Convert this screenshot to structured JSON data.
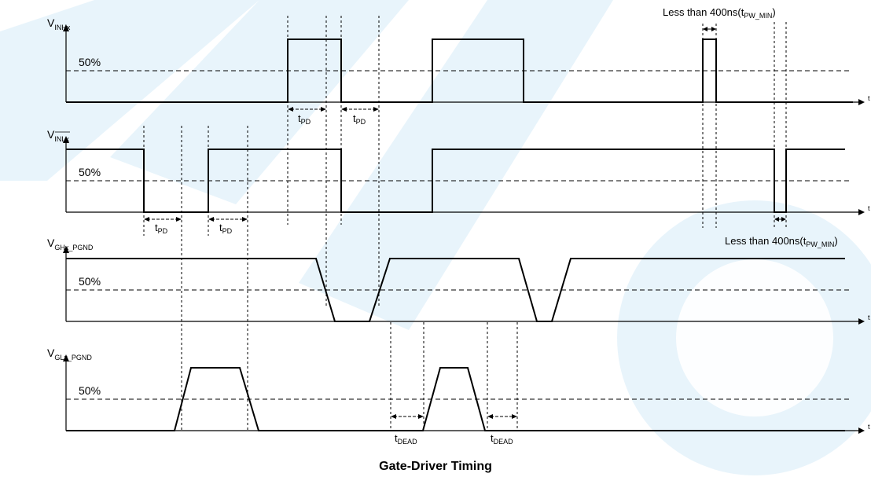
{
  "figure": {
    "caption": "Gate-Driver Timing"
  },
  "signals": [
    {
      "id": "inh",
      "label_main": "V",
      "label_sub": "INHx",
      "overline": false
    },
    {
      "id": "inl",
      "label_main": "V",
      "label_sub": "INLx",
      "overline": true
    },
    {
      "id": "gh",
      "label_main": "V",
      "label_sub": "GHx_PGND",
      "overline": false
    },
    {
      "id": "gl",
      "label_main": "V",
      "label_sub": "GLx_PGND",
      "overline": false
    }
  ],
  "threshold_label": "50%",
  "time_axis_label": "t",
  "tpd": {
    "main": "t",
    "sub": "PD"
  },
  "tdead": {
    "main": "t",
    "sub": "DEAD"
  },
  "pulse_note": {
    "prefix": "Less than 400ns(t",
    "sub": "PW_MIN",
    "suffix": ")"
  },
  "colors": {
    "trace": "#000000",
    "watermark": "#1a8fd8"
  }
}
